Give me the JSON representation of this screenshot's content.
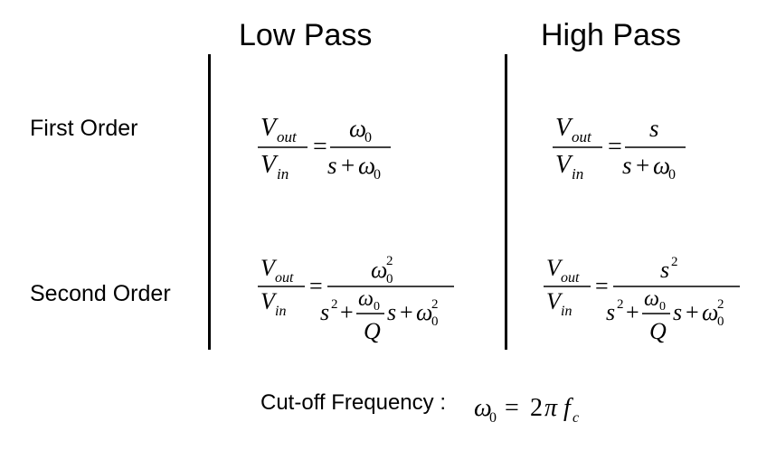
{
  "headers": {
    "low_pass": "Low Pass",
    "high_pass": "High Pass"
  },
  "rows": {
    "first_order": "First Order",
    "second_order": "Second  Order"
  },
  "math": {
    "V": "V",
    "out": "out",
    "in": "in",
    "eq": "=",
    "omega": "ω",
    "zero": "0",
    "s": "s",
    "plus": "+",
    "sq": "2",
    "Q": "Q",
    "two": "2",
    "pi": "π",
    "f": "f",
    "c": "c"
  },
  "cutoff_label": "Cut-off Frequency :"
}
